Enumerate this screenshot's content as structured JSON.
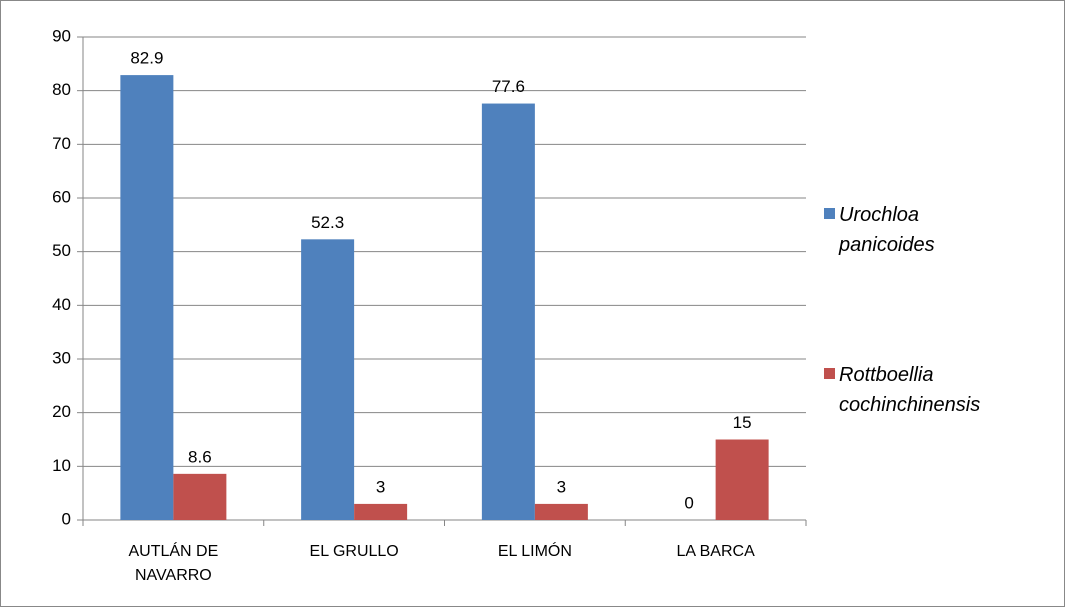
{
  "chart_data": {
    "type": "bar",
    "categories": [
      "AUTLÁN DE NAVARRO",
      "EL GRULLO",
      "EL LIMÓN",
      "LA BARCA"
    ],
    "series": [
      {
        "name": "Urochloa panicoides",
        "color": "#4f81bd",
        "values": [
          82.9,
          52.3,
          77.6,
          0
        ]
      },
      {
        "name": "Rottboellia cochinchinensis",
        "color": "#c0504d",
        "values": [
          8.6,
          3,
          3,
          15
        ]
      }
    ],
    "ylim": [
      0,
      90
    ],
    "yticks": [
      0,
      10,
      20,
      30,
      40,
      50,
      60,
      70,
      80,
      90
    ],
    "grid": true,
    "legend": "right"
  }
}
